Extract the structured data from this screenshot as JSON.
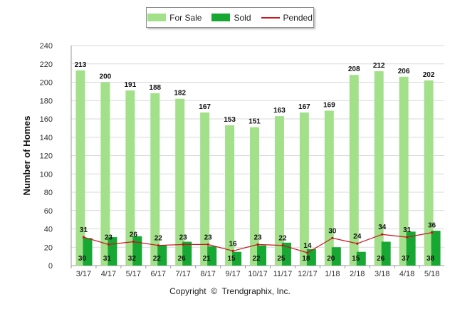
{
  "legend": {
    "for_sale": "For Sale",
    "sold": "Sold",
    "pended": "Pended"
  },
  "footer": {
    "copyright_prefix": "Copyright",
    "copyright_symbol": "©",
    "copyright_owner": "Trendgraphix, Inc."
  },
  "colors": {
    "for_sale": "#a3e08a",
    "sold": "#16a832",
    "pended": "#c8141e",
    "grid": "#d9d9d9"
  },
  "chart_data": {
    "type": "bar",
    "ylabel": "Number of Homes",
    "xlabel": "",
    "ylim": [
      0,
      240
    ],
    "yticks": [
      0,
      20,
      40,
      60,
      80,
      100,
      120,
      140,
      160,
      180,
      200,
      220,
      240
    ],
    "grid": true,
    "legend_position": "top-center",
    "categories": [
      "3/17",
      "4/17",
      "5/17",
      "6/17",
      "7/17",
      "8/17",
      "9/17",
      "10/17",
      "11/17",
      "12/17",
      "1/18",
      "2/18",
      "3/18",
      "4/18",
      "5/18"
    ],
    "series": [
      {
        "name": "For Sale",
        "kind": "bar",
        "values": [
          213,
          200,
          191,
          188,
          182,
          167,
          153,
          151,
          163,
          167,
          169,
          208,
          212,
          206,
          202
        ]
      },
      {
        "name": "Sold",
        "kind": "bar",
        "values": [
          30,
          31,
          32,
          22,
          26,
          21,
          15,
          22,
          25,
          18,
          20,
          15,
          26,
          37,
          38
        ]
      },
      {
        "name": "Pended",
        "kind": "line",
        "values": [
          31,
          23,
          26,
          22,
          23,
          23,
          16,
          23,
          22,
          14,
          30,
          24,
          34,
          31,
          36
        ]
      }
    ]
  }
}
